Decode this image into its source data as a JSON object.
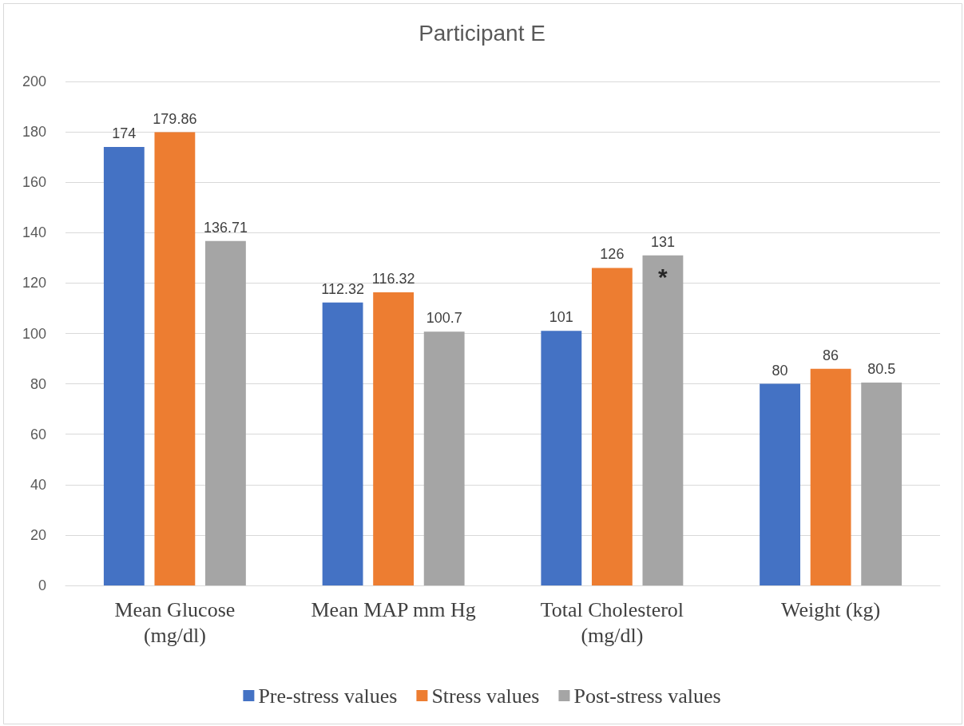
{
  "chart_data": {
    "type": "bar",
    "title": "Participant E",
    "categories": [
      "Mean Glucose (mg/dl)",
      "Mean MAP mm Hg",
      "Total Cholesterol (mg/dl)",
      "Weight (kg)"
    ],
    "series": [
      {
        "name": "Pre-stress values",
        "color": "#4472c4",
        "values": [
          174,
          112.32,
          101,
          80
        ]
      },
      {
        "name": "Stress values",
        "color": "#ed7d31",
        "values": [
          179.86,
          116.32,
          126,
          86
        ]
      },
      {
        "name": "Post-stress values",
        "color": "#a5a5a5",
        "values": [
          136.71,
          100.7,
          131,
          80.5
        ]
      }
    ],
    "ylim": [
      0,
      200
    ],
    "yticks": [
      0,
      20,
      40,
      60,
      80,
      100,
      120,
      140,
      160,
      180,
      200
    ],
    "grid": "y",
    "legend": "bottom",
    "data_labels": true,
    "annotations": [
      "*"
    ]
  }
}
